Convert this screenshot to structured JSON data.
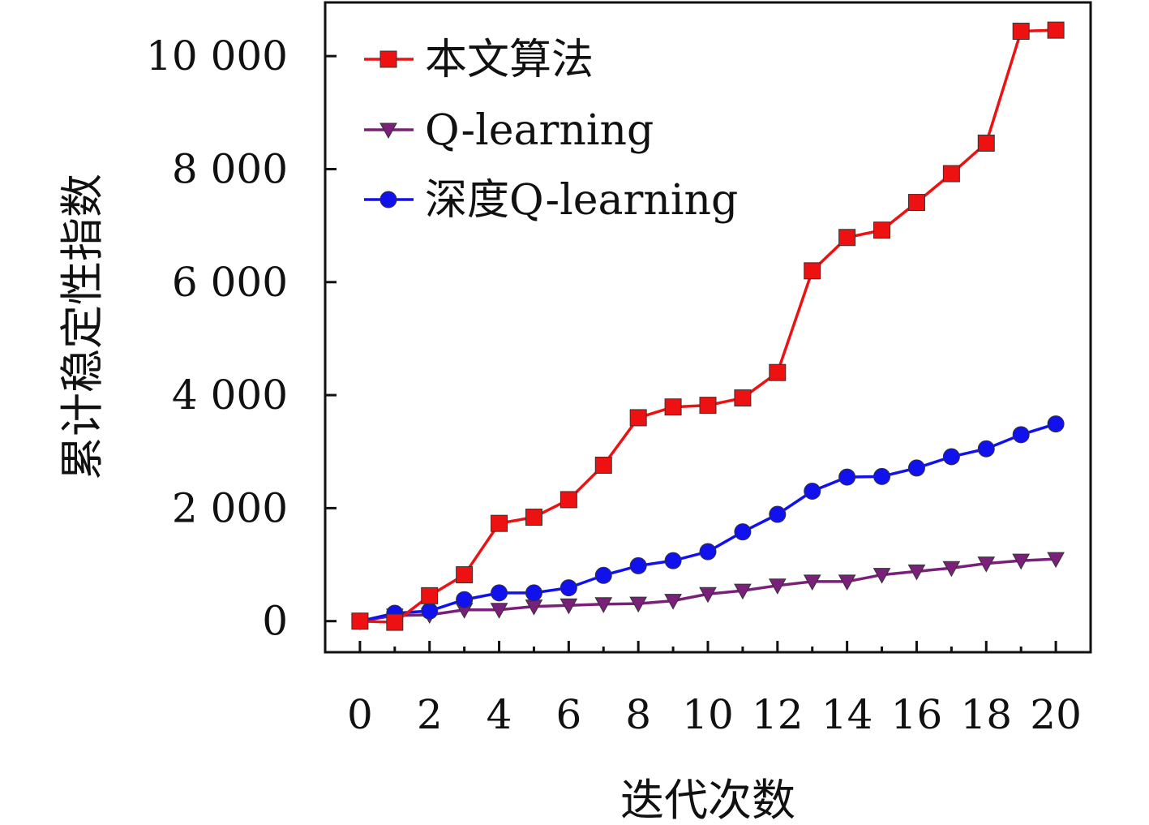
{
  "chart_data": {
    "type": "line",
    "title": "",
    "xlabel": "迭代次数",
    "ylabel": "累计稳定性指数",
    "xlim": [
      -1,
      21
    ],
    "ylim": [
      -550,
      10950
    ],
    "x_ticks": [
      0,
      2,
      4,
      6,
      8,
      10,
      12,
      14,
      16,
      18,
      20
    ],
    "x_tick_labels": [
      "0",
      "2",
      "4",
      "6",
      "8",
      "10",
      "12",
      "14",
      "16",
      "18",
      "20"
    ],
    "y_ticks": [
      0,
      2000,
      4000,
      6000,
      8000,
      10000
    ],
    "y_tick_labels": [
      "0",
      "2 000",
      "4 000",
      "6 000",
      "8 000",
      "10 000"
    ],
    "grid": false,
    "legend_position": "top-left",
    "x": [
      0,
      1,
      2,
      3,
      4,
      5,
      6,
      7,
      8,
      9,
      10,
      11,
      12,
      13,
      14,
      15,
      16,
      17,
      18,
      19,
      20
    ],
    "series": [
      {
        "name": "本文算法",
        "color": "#ee1111",
        "marker": "square",
        "values": [
          0,
          -20,
          450,
          820,
          1730,
          1840,
          2150,
          2760,
          3600,
          3790,
          3820,
          3950,
          4400,
          6200,
          6790,
          6920,
          7410,
          7920,
          8460,
          10440,
          10460
        ]
      },
      {
        "name": "Q-learning",
        "color": "#7a1f7a",
        "marker": "triangle-down",
        "values": [
          0,
          100,
          110,
          200,
          200,
          260,
          280,
          300,
          310,
          360,
          480,
          540,
          630,
          700,
          700,
          820,
          880,
          940,
          1020,
          1070,
          1100
        ]
      },
      {
        "name": "深度Q-learning",
        "color": "#1111ee",
        "marker": "circle",
        "values": [
          0,
          140,
          180,
          380,
          500,
          500,
          590,
          810,
          980,
          1070,
          1230,
          1580,
          1890,
          2300,
          2550,
          2560,
          2710,
          2910,
          3050,
          3300,
          3490
        ]
      }
    ]
  }
}
